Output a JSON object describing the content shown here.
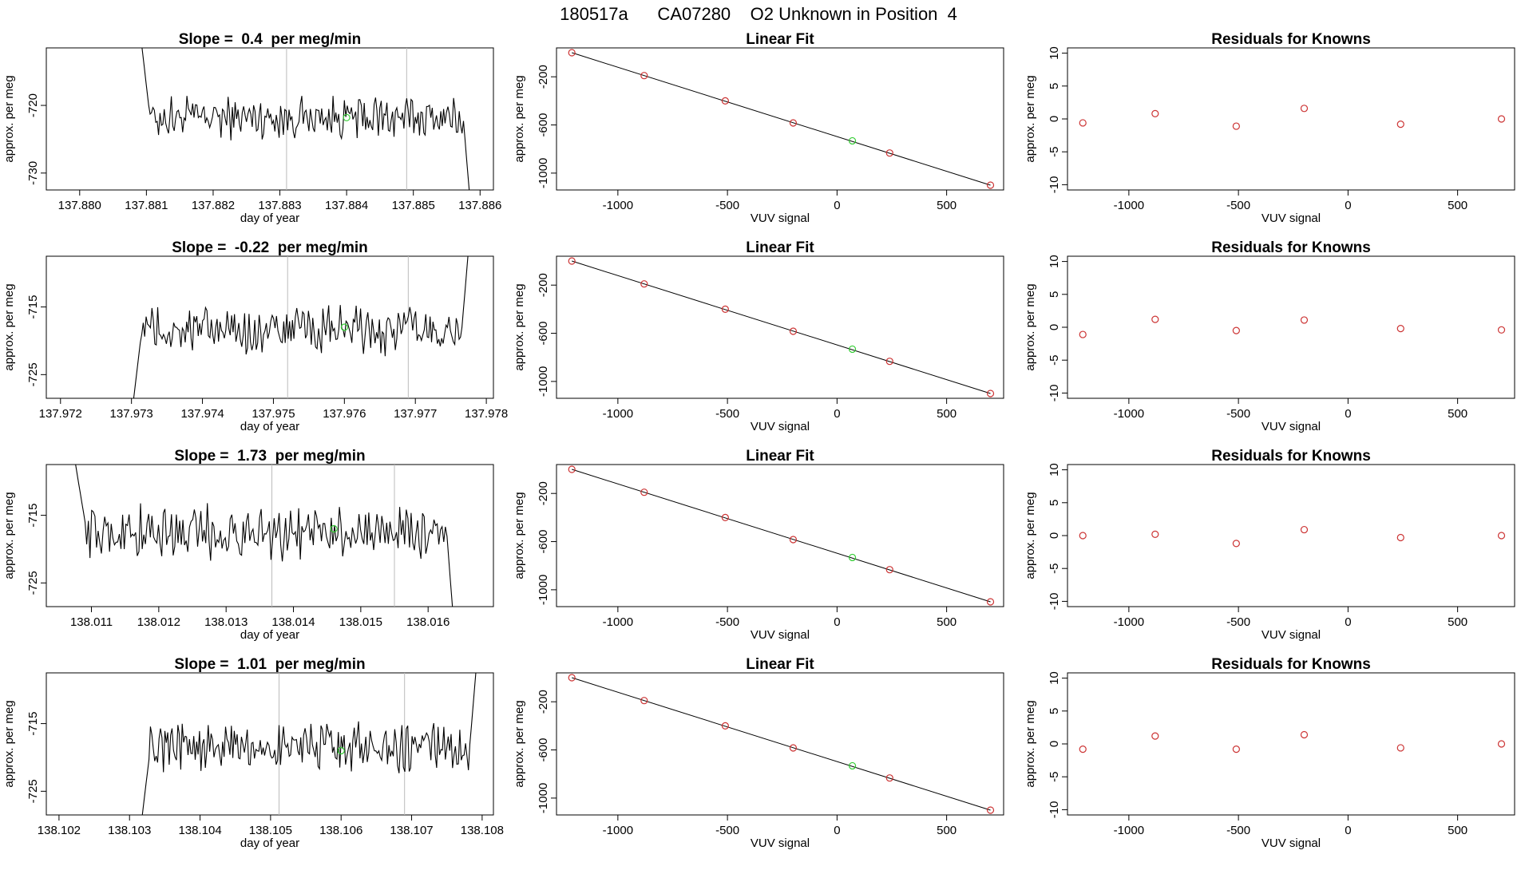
{
  "figure": {
    "title": "180517a      CA07280    O2 Unknown in Position  4",
    "colors": {
      "line": "#000000",
      "known": "#cc3333",
      "unknown": "#33cc33",
      "vline": "#bbbbbb",
      "frame": "#000000"
    }
  },
  "chart_data": [
    {
      "type": "line",
      "panel": "row1-timeseries",
      "title": "Slope =  0.4  per meg/min",
      "xlabel": "day of year",
      "ylabel": "approx. per meg",
      "xlim": [
        137.8795,
        137.8862
      ],
      "ylim": [
        -732.5,
        -711.5
      ],
      "xticks": [
        "137.880",
        "137.881",
        "137.882",
        "137.883",
        "137.884",
        "137.885",
        "137.886"
      ],
      "yticks": [
        "-720",
        "-730"
      ],
      "vlines": [
        137.8831,
        137.8849
      ],
      "series_start": 137.8808,
      "series_end": 137.8859,
      "base": -721.8,
      "noise": 1.6,
      "start_level": -700,
      "end_level": -740,
      "unknown_point": {
        "x": 137.884,
        "y": -721.8
      }
    },
    {
      "type": "scatter",
      "panel": "row1-fit",
      "title": "Linear Fit",
      "xlabel": "VUV signal",
      "ylabel": "approx. per meg",
      "xlim": [
        -1280,
        760
      ],
      "ylim": [
        -1140,
        40
      ],
      "xticks": [
        "-1000",
        "-500",
        "0",
        "500"
      ],
      "yticks": [
        "-200",
        "-600",
        "-1000"
      ],
      "line": {
        "x": [
          -1210,
          700
        ],
        "y": [
          0,
          -1100
        ]
      },
      "knowns": {
        "x": [
          -1210,
          -880,
          -510,
          -200,
          240,
          700
        ],
        "y": [
          0,
          -190,
          -400,
          -583,
          -833,
          -1100
        ]
      },
      "unknown": {
        "x": 70,
        "y": -732
      }
    },
    {
      "type": "scatter",
      "panel": "row1-residuals",
      "title": "Residuals for Knowns",
      "xlabel": "VUV signal",
      "ylabel": "approx. per meg",
      "xlim": [
        -1280,
        760
      ],
      "ylim": [
        -10.8,
        10.8
      ],
      "xticks": [
        "-1000",
        "-500",
        "0",
        "500"
      ],
      "yticks": [
        "10",
        "5",
        "0",
        "-5",
        "-10"
      ],
      "x": [
        -1210,
        -880,
        -510,
        -200,
        240,
        700
      ],
      "y": [
        -0.6,
        0.8,
        -1.1,
        1.6,
        -0.8,
        0.0
      ]
    },
    {
      "type": "line",
      "panel": "row2-timeseries",
      "title": "Slope =  -0.22  per meg/min",
      "xlabel": "day of year",
      "ylabel": "approx. per meg",
      "xlim": [
        137.9718,
        137.9781
      ],
      "ylim": [
        -728.5,
        -707.5
      ],
      "xticks": [
        "137.972",
        "137.973",
        "137.974",
        "137.975",
        "137.976",
        "137.977",
        "137.978"
      ],
      "yticks": [
        "-715",
        "-725"
      ],
      "vlines": [
        137.9752,
        137.9769
      ],
      "series_start": 137.9729,
      "series_end": 137.9778,
      "base": -718.5,
      "noise": 1.8,
      "start_level": -740,
      "end_level": -700,
      "unknown_point": {
        "x": 137.976,
        "y": -718.0
      }
    },
    {
      "type": "scatter",
      "panel": "row2-fit",
      "title": "Linear Fit",
      "xlabel": "VUV signal",
      "ylabel": "approx. per meg",
      "xlim": [
        -1280,
        760
      ],
      "ylim": [
        -1140,
        40
      ],
      "xticks": [
        "-1000",
        "-500",
        "0",
        "500"
      ],
      "yticks": [
        "-200",
        "-600",
        "-1000"
      ],
      "line": {
        "x": [
          -1210,
          700
        ],
        "y": [
          0,
          -1100
        ]
      },
      "knowns": {
        "x": [
          -1210,
          -880,
          -510,
          -200,
          240,
          700
        ],
        "y": [
          0,
          -190,
          -400,
          -583,
          -833,
          -1100
        ]
      },
      "unknown": {
        "x": 70,
        "y": -732
      }
    },
    {
      "type": "scatter",
      "panel": "row2-residuals",
      "title": "Residuals for Knowns",
      "xlabel": "VUV signal",
      "ylabel": "approx. per meg",
      "xlim": [
        -1280,
        760
      ],
      "ylim": [
        -10.8,
        10.8
      ],
      "xticks": [
        "-1000",
        "-500",
        "0",
        "500"
      ],
      "yticks": [
        "10",
        "5",
        "0",
        "-5",
        "-10"
      ],
      "x": [
        -1210,
        -880,
        -510,
        -200,
        240,
        700
      ],
      "y": [
        -1.1,
        1.2,
        -0.5,
        1.1,
        -0.2,
        -0.4
      ]
    },
    {
      "type": "line",
      "panel": "row3-timeseries",
      "title": "Slope =  1.73  per meg/min",
      "xlabel": "day of year",
      "ylabel": "approx. per meg",
      "xlim": [
        138.01033,
        138.01697
      ],
      "ylim": [
        -728.5,
        -707.5
      ],
      "xticks": [
        "138.011",
        "138.012",
        "138.013",
        "138.014",
        "138.015",
        "138.016"
      ],
      "yticks": [
        "-715",
        "-725"
      ],
      "vlines": [
        138.01368,
        138.0155
      ],
      "series_start": 138.01064,
      "series_end": 138.01645,
      "base": -717.5,
      "noise": 2.0,
      "start_level": -700,
      "end_level": -740,
      "unknown_point": {
        "x": 138.0146,
        "y": -717.0
      }
    },
    {
      "type": "scatter",
      "panel": "row3-fit",
      "title": "Linear Fit",
      "xlabel": "VUV signal",
      "ylabel": "approx. per meg",
      "xlim": [
        -1280,
        760
      ],
      "ylim": [
        -1140,
        40
      ],
      "xticks": [
        "-1000",
        "-500",
        "0",
        "500"
      ],
      "yticks": [
        "-200",
        "-600",
        "-1000"
      ],
      "line": {
        "x": [
          -1210,
          700
        ],
        "y": [
          0,
          -1100
        ]
      },
      "knowns": {
        "x": [
          -1210,
          -880,
          -510,
          -200,
          240,
          700
        ],
        "y": [
          0,
          -190,
          -400,
          -583,
          -833,
          -1100
        ]
      },
      "unknown": {
        "x": 70,
        "y": -732
      }
    },
    {
      "type": "scatter",
      "panel": "row3-residuals",
      "title": "Residuals for Knowns",
      "xlabel": "VUV signal",
      "ylabel": "approx. per meg",
      "xlim": [
        -1280,
        760
      ],
      "ylim": [
        -10.8,
        10.8
      ],
      "xticks": [
        "-1000",
        "-500",
        "0",
        "500"
      ],
      "yticks": [
        "10",
        "5",
        "0",
        "-5",
        "-10"
      ],
      "x": [
        -1210,
        -880,
        -510,
        -200,
        240,
        700
      ],
      "y": [
        0.0,
        0.2,
        -1.2,
        0.9,
        -0.3,
        0.0
      ]
    },
    {
      "type": "line",
      "panel": "row4-timeseries",
      "title": "Slope =  1.01  per meg/min",
      "xlabel": "day of year",
      "ylabel": "approx. per meg",
      "xlim": [
        138.10182,
        138.10816
      ],
      "ylim": [
        -728.5,
        -707.5
      ],
      "xticks": [
        "138.102",
        "138.103",
        "138.104",
        "138.105",
        "138.106",
        "138.107",
        "138.108"
      ],
      "yticks": [
        "-715",
        "-725"
      ],
      "vlines": [
        138.10512,
        138.1069
      ],
      "series_start": 138.10305,
      "series_end": 138.10797,
      "base": -718.5,
      "noise": 1.8,
      "start_level": -740,
      "end_level": -700,
      "unknown_point": {
        "x": 138.106,
        "y": -719.0
      }
    },
    {
      "type": "scatter",
      "panel": "row4-fit",
      "title": "Linear Fit",
      "xlabel": "VUV signal",
      "ylabel": "approx. per meg",
      "xlim": [
        -1280,
        760
      ],
      "ylim": [
        -1140,
        40
      ],
      "xticks": [
        "-1000",
        "-500",
        "0",
        "500"
      ],
      "yticks": [
        "-200",
        "-600",
        "-1000"
      ],
      "line": {
        "x": [
          -1210,
          700
        ],
        "y": [
          0,
          -1100
        ]
      },
      "knowns": {
        "x": [
          -1210,
          -880,
          -510,
          -200,
          240,
          700
        ],
        "y": [
          0,
          -190,
          -400,
          -583,
          -833,
          -1100
        ]
      },
      "unknown": {
        "x": 70,
        "y": -732
      }
    },
    {
      "type": "scatter",
      "panel": "row4-residuals",
      "title": "Residuals for Knowns",
      "xlabel": "VUV signal",
      "ylabel": "approx. per meg",
      "xlim": [
        -1280,
        760
      ],
      "ylim": [
        -10.8,
        10.8
      ],
      "xticks": [
        "-1000",
        "-500",
        "0",
        "500"
      ],
      "yticks": [
        "10",
        "5",
        "0",
        "-5",
        "-10"
      ],
      "x": [
        -1210,
        -880,
        -510,
        -200,
        240,
        700
      ],
      "y": [
        -0.8,
        1.2,
        -0.8,
        1.4,
        -0.6,
        0.0
      ]
    }
  ]
}
